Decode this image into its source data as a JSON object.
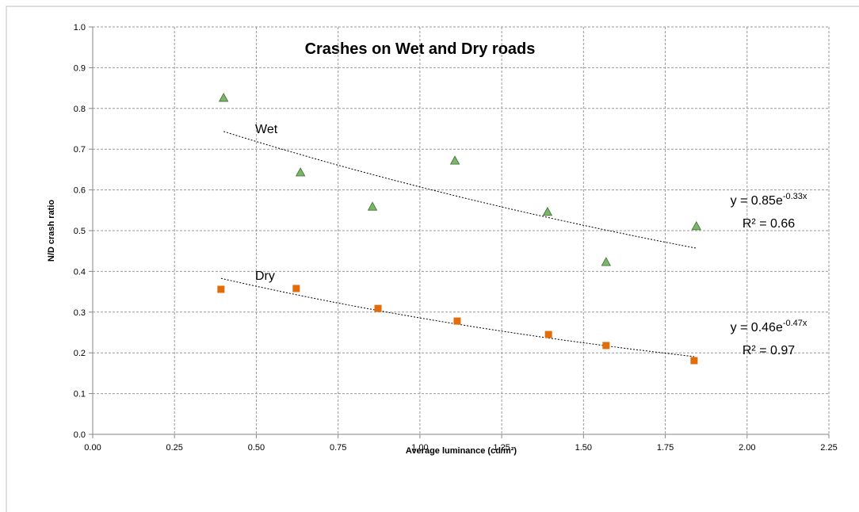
{
  "chart_data": {
    "type": "scatter",
    "title": "Crashes on Wet and Dry roads",
    "xlabel": "Average luminance (cd/m²)",
    "ylabel": "N/D crash ratio",
    "xlim": [
      0,
      2.25
    ],
    "ylim": [
      0,
      1
    ],
    "xticks": [
      {
        "value": 0,
        "label": "0.00"
      },
      {
        "value": 0.25,
        "label": "0.25"
      },
      {
        "value": 0.5,
        "label": "0.50"
      },
      {
        "value": 0.75,
        "label": "0.75"
      },
      {
        "value": 1,
        "label": "1.00"
      },
      {
        "value": 1.25,
        "label": "1.25"
      },
      {
        "value": 1.5,
        "label": "1.50"
      },
      {
        "value": 1.75,
        "label": "1.75"
      },
      {
        "value": 2,
        "label": "2.00"
      },
      {
        "value": 2.25,
        "label": "2.25"
      }
    ],
    "yticks": [
      {
        "value": 0,
        "label": "0.0"
      },
      0.1,
      0.2,
      0.3,
      0.4,
      0.5,
      0.6,
      0.7,
      0.8,
      0.9,
      {
        "value": 1,
        "label": "1.0"
      }
    ],
    "grid": true,
    "series": [
      {
        "name": "Wet",
        "color": "#7cb56a",
        "marker": "triangle",
        "x": [
          0.4,
          0.635,
          0.855,
          1.107,
          1.39,
          1.569,
          1.845
        ],
        "values": [
          0.825,
          0.642,
          0.558,
          0.671,
          0.545,
          0.422,
          0.51
        ],
        "trendline": {
          "equation": "y = 0.85e",
          "exponent": "-0.33x",
          "r2": "R² = 0.66"
        }
      },
      {
        "name": "Dry",
        "color": "#e36c0a",
        "marker": "square",
        "x": [
          0.392,
          0.622,
          0.872,
          1.114,
          1.393,
          1.569,
          1.838
        ],
        "values": [
          0.356,
          0.358,
          0.309,
          0.278,
          0.245,
          0.218,
          0.181
        ],
        "trendline": {
          "equation": "y = 0.46e",
          "exponent": "-0.47x",
          "r2": "R² = 0.97"
        }
      }
    ]
  }
}
